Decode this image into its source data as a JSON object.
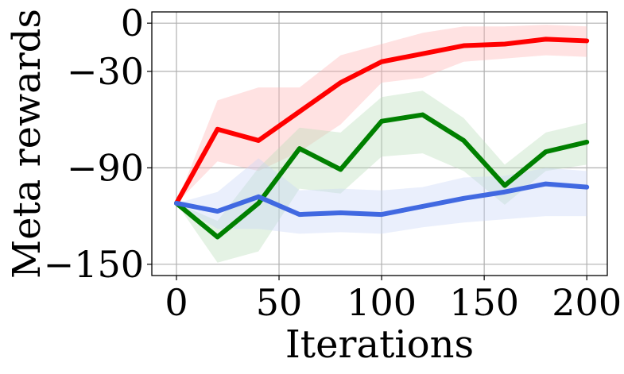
{
  "chart_data": {
    "type": "line",
    "title": "",
    "xlabel": "Iterations",
    "ylabel": "Meta rewards",
    "xlim": [
      -12,
      210
    ],
    "ylim": [
      -157,
      7
    ],
    "xticks": [
      0,
      50,
      100,
      150,
      200
    ],
    "yticks": [
      0,
      -30,
      -90,
      -150
    ],
    "ytick_labels": [
      "0",
      "−30",
      "−90",
      "−150"
    ],
    "xtick_labels": [
      "0",
      "50",
      "100",
      "150",
      "200"
    ],
    "grid": true,
    "legend": "none",
    "x": [
      0,
      20,
      40,
      60,
      80,
      100,
      120,
      140,
      160,
      180,
      200
    ],
    "series": [
      {
        "color": "#ff0000",
        "band_color": "#ffb3b3",
        "values": [
          -112,
          -66,
          -73,
          -55,
          -37,
          -24,
          -19,
          -14,
          -13,
          -10,
          -11
        ],
        "lower": [
          -112,
          -86,
          -92,
          -80,
          -63,
          -37,
          -34,
          -24,
          -22,
          -20,
          -21
        ],
        "upper": [
          -112,
          -48,
          -40,
          -40,
          -20,
          -13,
          -6,
          -2,
          -2,
          -1,
          -2
        ]
      },
      {
        "color": "#008000",
        "band_color": "#b8deb8",
        "values": [
          -112,
          -133,
          -112,
          -78,
          -91,
          -61,
          -57,
          -73,
          -101,
          -80,
          -74
        ],
        "lower": [
          -112,
          -149,
          -142,
          -103,
          -106,
          -83,
          -81,
          -92,
          -113,
          -92,
          -88
        ],
        "upper": [
          -112,
          -123,
          -90,
          -65,
          -68,
          -46,
          -42,
          -59,
          -88,
          -68,
          -62
        ]
      },
      {
        "color": "#4169e1",
        "band_color": "#c8d4f8",
        "values": [
          -112,
          -117,
          -108,
          -119,
          -118,
          -119,
          -114,
          -109,
          -105,
          -100,
          -102
        ],
        "lower": [
          -112,
          -128,
          -128,
          -131,
          -130,
          -131,
          -127,
          -124,
          -122,
          -120,
          -120
        ],
        "upper": [
          -112,
          -105,
          -84,
          -104,
          -103,
          -104,
          -102,
          -96,
          -95,
          -90,
          -92
        ]
      }
    ]
  }
}
